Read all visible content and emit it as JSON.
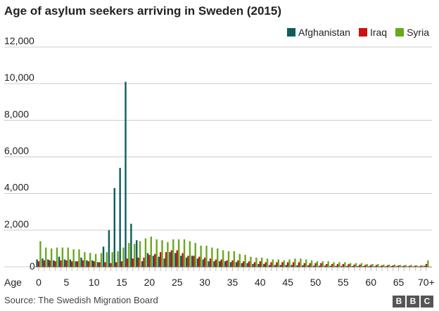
{
  "chart_data": {
    "type": "bar",
    "title": "Age of asylum seekers arriving in Sweden (2015)",
    "xlabel": "Age",
    "ylim": [
      0,
      12000
    ],
    "yticks": [
      "0",
      "2,000",
      "4,000",
      "6,000",
      "8,000",
      "10,000",
      "12,000"
    ],
    "ytick_values": [
      0,
      2000,
      4000,
      6000,
      8000,
      10000,
      12000
    ],
    "xticks": [
      "0",
      "5",
      "10",
      "15",
      "20",
      "25",
      "30",
      "35",
      "40",
      "45",
      "50",
      "55",
      "60",
      "65",
      "70+"
    ],
    "grid": true,
    "legend_position": "top-right",
    "categories": [
      "0",
      "1",
      "2",
      "3",
      "4",
      "5",
      "6",
      "7",
      "8",
      "9",
      "10",
      "11",
      "12",
      "13",
      "14",
      "15",
      "16",
      "17",
      "18",
      "19",
      "20",
      "21",
      "22",
      "23",
      "24",
      "25",
      "26",
      "27",
      "28",
      "29",
      "30",
      "31",
      "32",
      "33",
      "34",
      "35",
      "36",
      "37",
      "38",
      "39",
      "40",
      "41",
      "42",
      "43",
      "44",
      "45",
      "46",
      "47",
      "48",
      "49",
      "50",
      "51",
      "52",
      "53",
      "54",
      "55",
      "56",
      "57",
      "58",
      "59",
      "60",
      "61",
      "62",
      "63",
      "64",
      "65",
      "66",
      "67",
      "68",
      "69",
      "70+"
    ],
    "series": [
      {
        "name": "Afghanistan",
        "color": "#0e5c5b",
        "values": [
          400,
          450,
          400,
          350,
          550,
          400,
          400,
          300,
          500,
          350,
          350,
          250,
          1100,
          2000,
          4300,
          5400,
          10100,
          2350,
          1450,
          300,
          750,
          600,
          550,
          450,
          800,
          750,
          600,
          500,
          600,
          450,
          400,
          300,
          300,
          300,
          300,
          250,
          250,
          200,
          200,
          150,
          150,
          150,
          100,
          100,
          100,
          100,
          100,
          80,
          80,
          80,
          60,
          60,
          60,
          50,
          50,
          50,
          50,
          40,
          40,
          40,
          40,
          30,
          30,
          30,
          30,
          30,
          30,
          20,
          20,
          20,
          50
        ]
      },
      {
        "name": "Iraq",
        "color": "#cc1111",
        "values": [
          300,
          350,
          350,
          300,
          350,
          350,
          300,
          300,
          350,
          300,
          300,
          250,
          250,
          200,
          250,
          300,
          450,
          450,
          500,
          500,
          650,
          700,
          800,
          800,
          900,
          900,
          750,
          600,
          600,
          550,
          500,
          450,
          400,
          400,
          350,
          350,
          350,
          300,
          300,
          250,
          300,
          250,
          250,
          250,
          250,
          250,
          250,
          250,
          200,
          200,
          200,
          200,
          150,
          150,
          150,
          150,
          150,
          120,
          120,
          100,
          100,
          100,
          80,
          80,
          80,
          80,
          70,
          60,
          60,
          60,
          150
        ]
      },
      {
        "name": "Syria",
        "color": "#6aa81c",
        "values": [
          1400,
          1050,
          1000,
          1050,
          1050,
          1050,
          950,
          950,
          800,
          750,
          700,
          750,
          800,
          800,
          850,
          1050,
          1300,
          1250,
          1400,
          1550,
          1650,
          1500,
          1450,
          1350,
          1500,
          1500,
          1500,
          1400,
          1300,
          1150,
          1150,
          1050,
          1000,
          900,
          850,
          850,
          700,
          650,
          550,
          500,
          500,
          450,
          400,
          400,
          350,
          400,
          450,
          450,
          400,
          350,
          300,
          300,
          300,
          250,
          250,
          250,
          200,
          200,
          200,
          150,
          150,
          150,
          120,
          120,
          120,
          100,
          100,
          100,
          80,
          80,
          350
        ]
      }
    ]
  },
  "source": "Source: The Swedish Migration Board",
  "logo": "BBC"
}
